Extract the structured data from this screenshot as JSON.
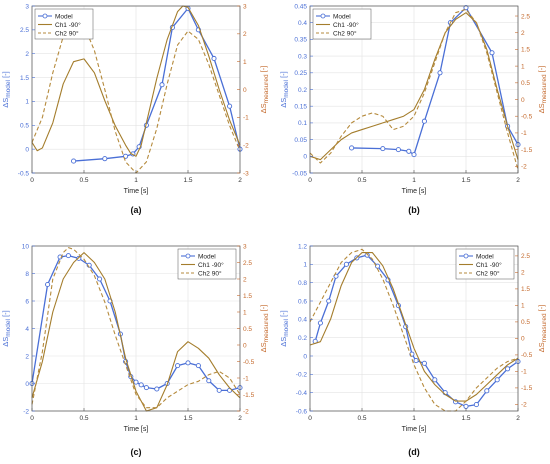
{
  "colors": {
    "model": "#4a6fd6",
    "ch1": "#a47d2c",
    "ch2": "#b58a3c",
    "right_axis": "#c4692c",
    "grid": "#e3e3e3",
    "axis": "#4d4d4d"
  },
  "chart_data": [
    {
      "panel_label": "(a)",
      "type": "line",
      "xlabel": "Time [s]",
      "ylabel_left": "ΔS_model [-]",
      "ylabel_right": "ΔS_measured [-]",
      "xlim": [
        0,
        2
      ],
      "ylim_left": [
        -0.5,
        3
      ],
      "ylim_right": [
        -3,
        3
      ],
      "xticks": [
        "0",
        "0.5",
        "1",
        "1.5",
        "2"
      ],
      "yticks_left": [
        "-0.5",
        "0",
        "0.5",
        "1",
        "1.5",
        "2",
        "2.5",
        "3"
      ],
      "yticks_right": [
        "-3",
        "-2",
        "-1",
        "0",
        "1",
        "2",
        "3"
      ],
      "grid": true,
      "legend_position": "top-left",
      "series": [
        {
          "name": "Model",
          "axis": "left",
          "style": "line-marker",
          "x": [
            0.4,
            0.7,
            0.9,
            0.97,
            1.03,
            1.1,
            1.25,
            1.35,
            1.5,
            1.6,
            1.75,
            1.9,
            2.0
          ],
          "y": [
            -0.25,
            -0.2,
            -0.15,
            -0.1,
            0.05,
            0.5,
            1.35,
            2.55,
            2.95,
            2.5,
            1.9,
            0.9,
            0.0
          ]
        },
        {
          "name": "Ch1 -90°",
          "axis": "right",
          "style": "solid",
          "x": [
            0,
            0.05,
            0.1,
            0.2,
            0.3,
            0.4,
            0.5,
            0.6,
            0.7,
            0.8,
            0.9,
            0.95,
            1.0,
            1.05,
            1.1,
            1.2,
            1.3,
            1.4,
            1.45,
            1.5,
            1.6,
            1.7,
            1.8,
            1.9,
            2.0
          ],
          "y": [
            -1.9,
            -2.2,
            -2.1,
            -1.2,
            0.2,
            1.0,
            1.1,
            0.6,
            -0.4,
            -1.3,
            -2.0,
            -2.3,
            -2.4,
            -2.0,
            -1.2,
            0.4,
            1.8,
            2.8,
            3.0,
            2.95,
            2.3,
            1.2,
            0.0,
            -1.1,
            -2.0
          ]
        },
        {
          "name": "Ch2  90°",
          "axis": "right",
          "style": "dashed",
          "x": [
            0,
            0.1,
            0.2,
            0.3,
            0.4,
            0.5,
            0.6,
            0.7,
            0.8,
            0.9,
            1.0,
            1.1,
            1.2,
            1.3,
            1.4,
            1.5,
            1.6,
            1.7,
            1.8,
            1.9,
            2.0
          ],
          "y": [
            -1.9,
            -1.0,
            0.6,
            1.9,
            2.5,
            2.3,
            1.4,
            0.0,
            -1.5,
            -2.6,
            -3.0,
            -2.6,
            -1.4,
            0.2,
            1.6,
            2.1,
            1.8,
            0.9,
            -0.2,
            -1.3,
            -2.2
          ]
        }
      ]
    },
    {
      "panel_label": "(b)",
      "type": "line",
      "xlabel": "Time [s]",
      "ylabel_left": "ΔS_model [-]",
      "ylabel_right": "ΔS_measured [-]",
      "xlim": [
        0,
        2
      ],
      "ylim_left": [
        -0.05,
        0.45
      ],
      "ylim_right": [
        -2.2,
        2.8
      ],
      "xticks": [
        "0",
        "0.5",
        "1",
        "1.5",
        "2"
      ],
      "yticks_left": [
        "-0.05",
        "0",
        "0.05",
        "0.1",
        "0.15",
        "0.2",
        "0.25",
        "0.3",
        "0.35",
        "0.4",
        "0.45"
      ],
      "yticks_right": [
        "-2",
        "-1.5",
        "-1",
        "-0.5",
        "0",
        "0.5",
        "1",
        "1.5",
        "2",
        "2.5"
      ],
      "grid": true,
      "legend_position": "top-left",
      "series": [
        {
          "name": "Model",
          "axis": "left",
          "style": "line-marker",
          "x": [
            0.4,
            0.7,
            0.85,
            0.95,
            1.0,
            1.1,
            1.25,
            1.35,
            1.5,
            1.75,
            1.9,
            2.0
          ],
          "y": [
            0.025,
            0.023,
            0.02,
            0.015,
            0.005,
            0.105,
            0.25,
            0.4,
            0.445,
            0.31,
            0.09,
            0.035
          ]
        },
        {
          "name": "Ch1 -90°",
          "axis": "right",
          "style": "solid",
          "x": [
            0,
            0.1,
            0.2,
            0.3,
            0.4,
            0.5,
            0.6,
            0.7,
            0.8,
            0.9,
            1.0,
            1.1,
            1.2,
            1.3,
            1.4,
            1.5,
            1.6,
            1.7,
            1.8,
            1.9,
            2.0
          ],
          "y": [
            -1.7,
            -1.8,
            -1.5,
            -1.2,
            -1.0,
            -0.9,
            -0.8,
            -0.7,
            -0.6,
            -0.5,
            -0.3,
            0.3,
            1.2,
            2.0,
            2.4,
            2.6,
            2.3,
            1.5,
            0.3,
            -0.8,
            -1.8
          ]
        },
        {
          "name": "Ch2  90°",
          "axis": "right",
          "style": "dashed",
          "x": [
            0,
            0.1,
            0.2,
            0.3,
            0.4,
            0.5,
            0.6,
            0.7,
            0.8,
            0.9,
            1.0,
            1.1,
            1.2,
            1.3,
            1.4,
            1.5,
            1.6,
            1.7,
            1.8,
            1.9,
            2.0
          ],
          "y": [
            -1.6,
            -1.9,
            -1.6,
            -1.1,
            -0.7,
            -0.5,
            -0.4,
            -0.5,
            -0.9,
            -0.8,
            -0.5,
            0.2,
            1.1,
            2.0,
            2.6,
            2.7,
            2.3,
            1.4,
            0.2,
            -1.0,
            -2.1
          ]
        }
      ]
    },
    {
      "panel_label": "(c)",
      "type": "line",
      "xlabel": "Time [s]",
      "ylabel_left": "ΔS_model [-]",
      "ylabel_right": "ΔS_measured [-]",
      "xlim": [
        0,
        2
      ],
      "ylim_left": [
        -2,
        10
      ],
      "ylim_right": [
        -2,
        3
      ],
      "xticks": [
        "0",
        "0.5",
        "1",
        "1.5",
        "2"
      ],
      "yticks_left": [
        "-2",
        "0",
        "2",
        "4",
        "6",
        "8",
        "10"
      ],
      "yticks_right": [
        "-2",
        "-1.5",
        "-1",
        "-0.5",
        "0",
        "0.5",
        "1",
        "1.5",
        "2",
        "2.5",
        "3"
      ],
      "grid": true,
      "legend_position": "top-right",
      "series": [
        {
          "name": "Model",
          "axis": "left",
          "style": "line-marker",
          "x": [
            0.0,
            0.15,
            0.27,
            0.35,
            0.45,
            0.55,
            0.65,
            0.75,
            0.85,
            0.9,
            0.95,
            1.0,
            1.05,
            1.1,
            1.2,
            1.3,
            1.4,
            1.5,
            1.6,
            1.7,
            1.8,
            1.9,
            2.0
          ],
          "y": [
            0.0,
            7.2,
            9.2,
            9.3,
            9.1,
            8.6,
            7.6,
            6.0,
            3.6,
            1.6,
            0.5,
            0.1,
            -0.1,
            -0.3,
            -0.4,
            0.0,
            1.3,
            1.5,
            1.3,
            0.2,
            -0.5,
            -0.5,
            -0.3
          ]
        },
        {
          "name": "Ch1 -90°",
          "axis": "right",
          "style": "solid",
          "x": [
            0,
            0.1,
            0.2,
            0.3,
            0.4,
            0.5,
            0.6,
            0.7,
            0.8,
            0.9,
            1.0,
            1.1,
            1.2,
            1.3,
            1.4,
            1.5,
            1.6,
            1.7,
            1.8,
            1.9,
            2.0
          ],
          "y": [
            -1.6,
            -0.5,
            1.0,
            2.0,
            2.5,
            2.8,
            2.5,
            2.0,
            1.0,
            -0.4,
            -1.4,
            -2.0,
            -1.9,
            -1.2,
            -0.2,
            0.1,
            -0.1,
            -0.4,
            -0.9,
            -1.3,
            -1.6
          ]
        },
        {
          "name": "Ch2  90°",
          "axis": "right",
          "style": "dashed",
          "x": [
            0,
            0.1,
            0.2,
            0.3,
            0.35,
            0.4,
            0.5,
            0.6,
            0.7,
            0.8,
            0.9,
            1.0,
            1.1,
            1.2,
            1.3,
            1.4,
            1.5,
            1.6,
            1.7,
            1.8,
            1.9,
            2.0
          ],
          "y": [
            -1.8,
            -0.2,
            2.0,
            2.8,
            2.95,
            2.9,
            2.6,
            2.1,
            1.3,
            0.3,
            -0.6,
            -1.5,
            -1.9,
            -1.9,
            -1.6,
            -1.4,
            -1.2,
            -1.1,
            -0.9,
            -0.8,
            -1.0,
            -1.5
          ]
        }
      ]
    },
    {
      "panel_label": "(d)",
      "type": "line",
      "xlabel": "Time [s]",
      "ylabel_left": "ΔS_model [-]",
      "ylabel_right": "ΔS_measured [-]",
      "xlim": [
        0,
        2
      ],
      "ylim_left": [
        -0.6,
        1.2
      ],
      "ylim_right": [
        -2.2,
        2.8
      ],
      "xticks": [
        "0",
        "0.5",
        "1",
        "1.5",
        "2"
      ],
      "yticks_left": [
        "-0.6",
        "-0.4",
        "-0.2",
        "0",
        "0.2",
        "0.4",
        "0.6",
        "0.8",
        "1",
        "1.2"
      ],
      "yticks_right": [
        "-2",
        "-1.5",
        "-1",
        "-0.5",
        "0",
        "0.5",
        "1",
        "1.5",
        "2",
        "2.5"
      ],
      "grid": true,
      "legend_position": "top-right",
      "series": [
        {
          "name": "Model",
          "axis": "left",
          "style": "line-marker",
          "x": [
            0.05,
            0.1,
            0.18,
            0.25,
            0.35,
            0.45,
            0.55,
            0.65,
            0.75,
            0.85,
            0.92,
            0.98,
            1.02,
            1.1,
            1.2,
            1.3,
            1.4,
            1.5,
            1.6,
            1.7,
            1.8,
            1.9,
            2.0
          ],
          "y": [
            0.16,
            0.36,
            0.6,
            0.87,
            1.0,
            1.07,
            1.1,
            0.98,
            0.83,
            0.55,
            0.32,
            0.02,
            -0.05,
            -0.08,
            -0.26,
            -0.4,
            -0.5,
            -0.55,
            -0.53,
            -0.38,
            -0.26,
            -0.14,
            -0.06
          ]
        },
        {
          "name": "Ch1 -90°",
          "axis": "right",
          "style": "solid",
          "x": [
            0,
            0.1,
            0.2,
            0.3,
            0.4,
            0.5,
            0.6,
            0.7,
            0.8,
            0.9,
            1.0,
            1.1,
            1.2,
            1.3,
            1.4,
            1.5,
            1.6,
            1.7,
            1.8,
            1.9,
            2.0
          ],
          "y": [
            -0.2,
            -0.1,
            0.6,
            1.6,
            2.3,
            2.6,
            2.6,
            2.2,
            1.5,
            0.6,
            -0.3,
            -1.0,
            -1.4,
            -1.7,
            -1.9,
            -1.9,
            -1.7,
            -1.4,
            -1.1,
            -0.8,
            -0.6
          ]
        },
        {
          "name": "Ch2  90°",
          "axis": "right",
          "style": "dashed",
          "x": [
            0,
            0.1,
            0.2,
            0.3,
            0.4,
            0.5,
            0.6,
            0.7,
            0.8,
            0.9,
            1.0,
            1.1,
            1.2,
            1.3,
            1.4,
            1.5,
            1.6,
            1.7,
            1.8,
            1.9,
            2.0
          ],
          "y": [
            0.5,
            1.1,
            1.7,
            2.3,
            2.6,
            2.7,
            2.4,
            1.8,
            1.0,
            0.1,
            -0.8,
            -1.5,
            -2.0,
            -2.2,
            -2.2,
            -1.9,
            -1.5,
            -1.2,
            -0.9,
            -0.7,
            -0.6
          ]
        }
      ]
    }
  ]
}
